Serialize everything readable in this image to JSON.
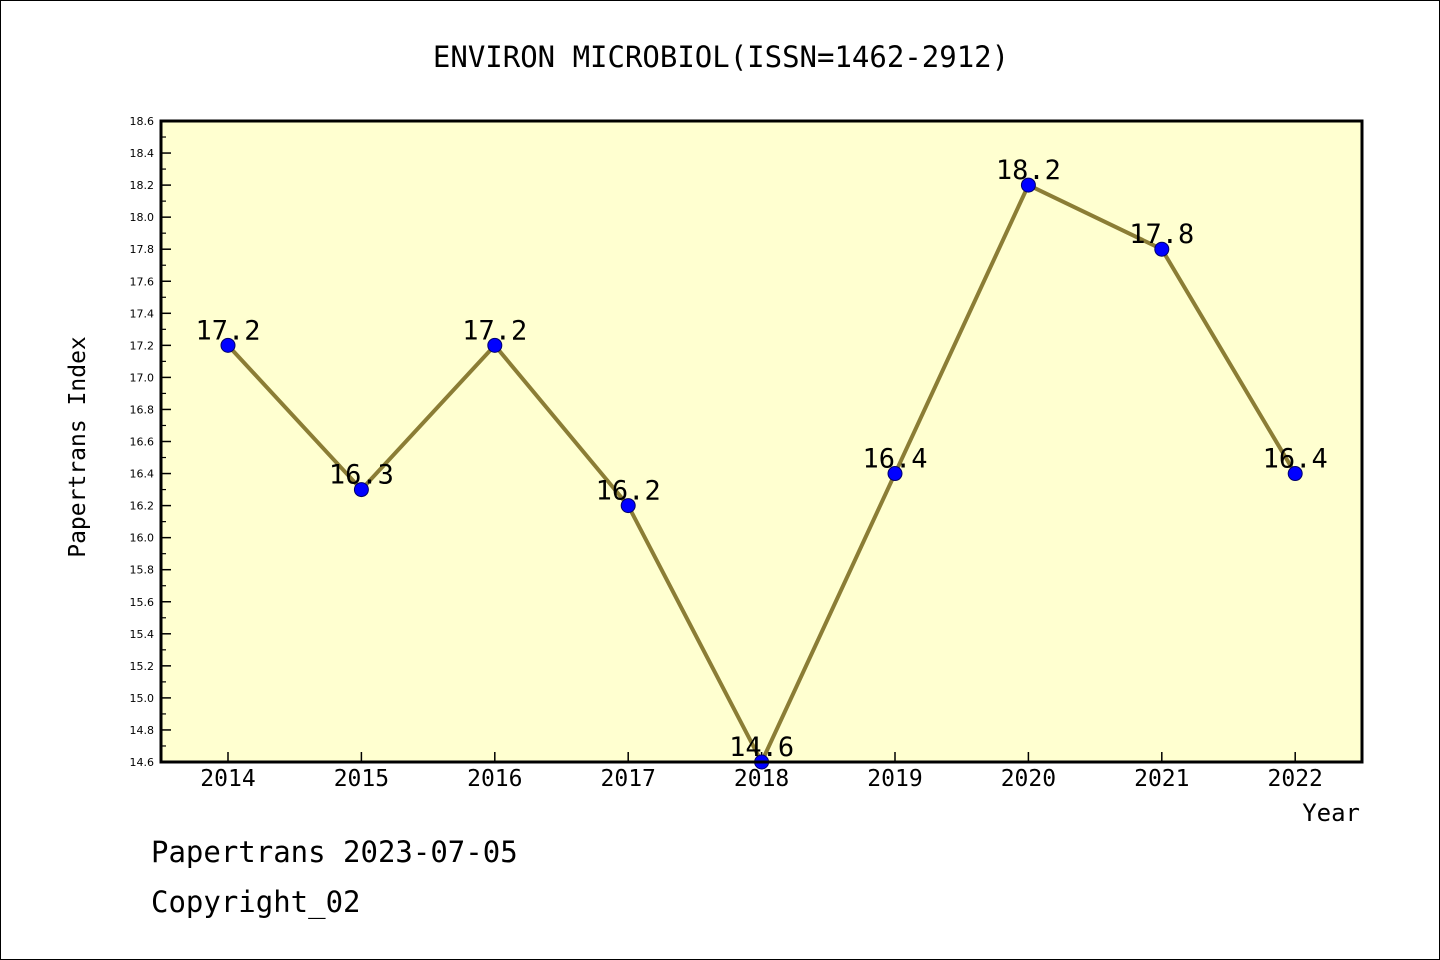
{
  "chart_data": {
    "type": "line",
    "title": "ENVIRON MICROBIOL(ISSN=1462-2912)",
    "xlabel": "Year",
    "ylabel": "Papertrans Index",
    "categories": [
      "2014",
      "2015",
      "2016",
      "2017",
      "2018",
      "2019",
      "2020",
      "2021",
      "2022"
    ],
    "values": [
      17.2,
      16.3,
      17.2,
      16.2,
      14.6,
      16.4,
      18.2,
      17.8,
      16.4
    ],
    "data_labels": [
      "17.2",
      "16.3",
      "17.2",
      "16.2",
      "14.6",
      "16.4",
      "18.2",
      "17.8",
      "16.4"
    ],
    "ylim": [
      14.6,
      18.6
    ],
    "yticks": [
      "14.6",
      "14.8",
      "15.0",
      "15.2",
      "15.4",
      "15.6",
      "15.8",
      "16.0",
      "16.2",
      "16.4",
      "16.6",
      "16.8",
      "17.0",
      "17.2",
      "17.4",
      "17.6",
      "17.8",
      "18.0",
      "18.2",
      "18.4",
      "18.6"
    ],
    "grid": false,
    "colors": {
      "plot_background": "#ffffd0",
      "line": "#8b7d35",
      "marker": "#0000ff"
    }
  },
  "footer": {
    "line1": "Papertrans 2023-07-05",
    "line2": "Copyright_02"
  }
}
